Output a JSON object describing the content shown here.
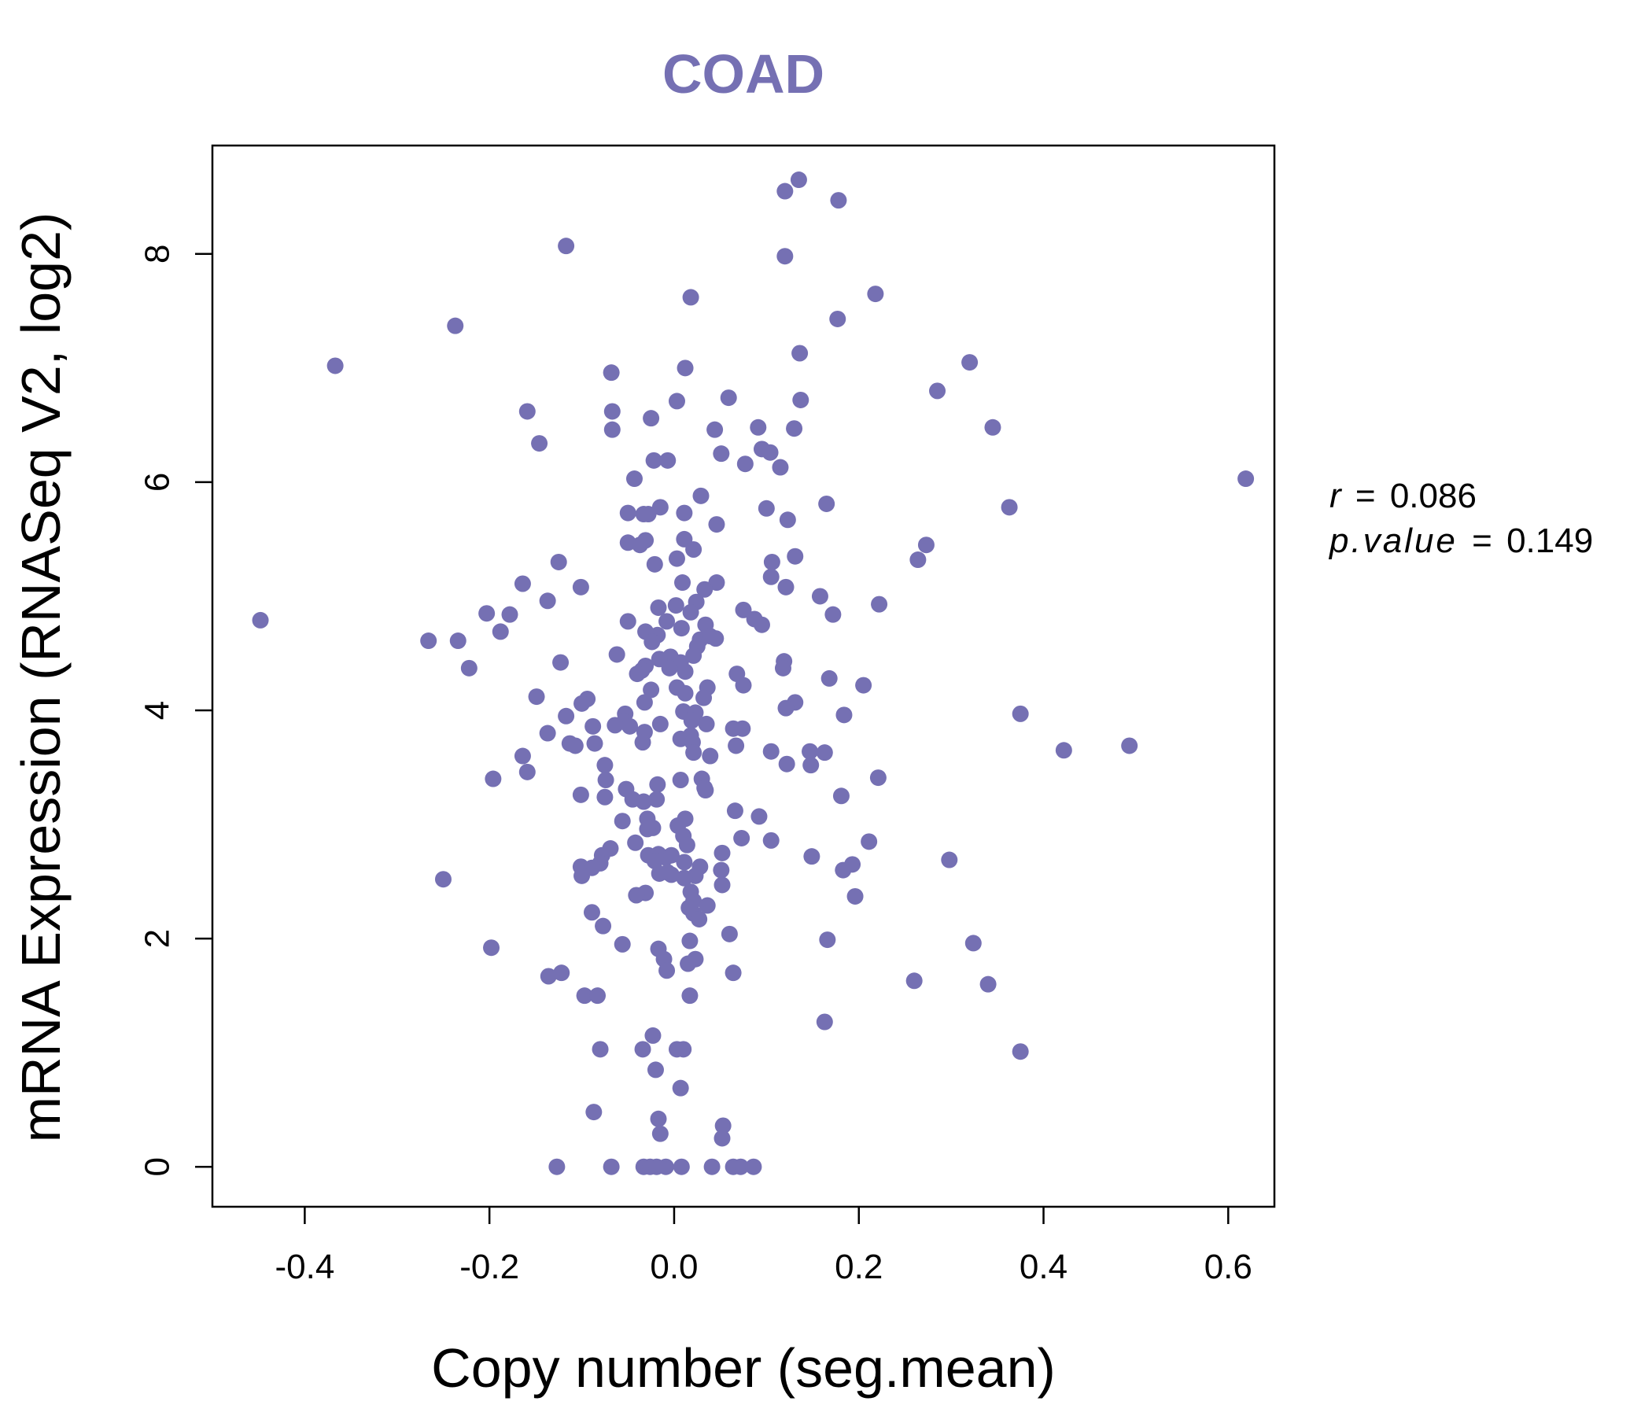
{
  "chart_data": {
    "type": "scatter",
    "title": "COAD",
    "xlabel": "Copy number (seg.mean)",
    "ylabel": "mRNA Expression (RNASeq V2, log2)",
    "xlim": [
      -0.5,
      0.65
    ],
    "ylim": [
      -0.35,
      8.95
    ],
    "x_ticks": [
      -0.4,
      -0.2,
      0.0,
      0.2,
      0.4,
      0.6
    ],
    "x_tick_labels": [
      "-0.4",
      "-0.2",
      "0.0",
      "0.2",
      "0.4",
      "0.6"
    ],
    "y_ticks": [
      0,
      2,
      4,
      6,
      8
    ],
    "y_tick_labels": [
      "0",
      "2",
      "4",
      "6",
      "8"
    ],
    "grid": false,
    "point_color": "#7570b3",
    "stats": {
      "r_label": "r",
      "r_value": "0.086",
      "p_label": "p.value",
      "p_value": "0.149"
    },
    "points": [
      [
        0.135,
        8.65
      ],
      [
        0.12,
        8.55
      ],
      [
        0.178,
        8.47
      ],
      [
        -0.117,
        8.07
      ],
      [
        0.12,
        7.98
      ],
      [
        0.218,
        7.65
      ],
      [
        0.018,
        7.62
      ],
      [
        0.177,
        7.43
      ],
      [
        -0.237,
        7.37
      ],
      [
        0.136,
        7.13
      ],
      [
        -0.367,
        7.02
      ],
      [
        0.32,
        7.05
      ],
      [
        0.012,
        7.0
      ],
      [
        -0.068,
        6.96
      ],
      [
        0.285,
        6.8
      ],
      [
        0.059,
        6.74
      ],
      [
        0.003,
        6.71
      ],
      [
        0.137,
        6.72
      ],
      [
        -0.159,
        6.62
      ],
      [
        -0.067,
        6.62
      ],
      [
        -0.025,
        6.56
      ],
      [
        -0.067,
        6.46
      ],
      [
        0.044,
        6.46
      ],
      [
        0.091,
        6.48
      ],
      [
        0.13,
        6.47
      ],
      [
        0.345,
        6.48
      ],
      [
        -0.146,
        6.34
      ],
      [
        0.095,
        6.29
      ],
      [
        0.104,
        6.26
      ],
      [
        0.051,
        6.25
      ],
      [
        -0.022,
        6.19
      ],
      [
        -0.007,
        6.19
      ],
      [
        0.077,
        6.16
      ],
      [
        0.115,
        6.13
      ],
      [
        0.619,
        6.03
      ],
      [
        -0.043,
        6.03
      ],
      [
        0.029,
        5.88
      ],
      [
        0.165,
        5.81
      ],
      [
        -0.015,
        5.78
      ],
      [
        -0.033,
        5.72
      ],
      [
        0.011,
        5.73
      ],
      [
        -0.028,
        5.72
      ],
      [
        -0.05,
        5.73
      ],
      [
        0.1,
        5.77
      ],
      [
        0.363,
        5.78
      ],
      [
        0.123,
        5.67
      ],
      [
        0.046,
        5.63
      ],
      [
        0.011,
        5.5
      ],
      [
        -0.031,
        5.49
      ],
      [
        -0.05,
        5.47
      ],
      [
        -0.037,
        5.45
      ],
      [
        0.021,
        5.41
      ],
      [
        0.273,
        5.45
      ],
      [
        0.131,
        5.35
      ],
      [
        0.264,
        5.32
      ],
      [
        -0.125,
        5.3
      ],
      [
        -0.021,
        5.28
      ],
      [
        0.003,
        5.33
      ],
      [
        0.106,
        5.3
      ],
      [
        0.105,
        5.17
      ],
      [
        0.009,
        5.12
      ],
      [
        0.046,
        5.12
      ],
      [
        -0.164,
        5.11
      ],
      [
        -0.101,
        5.08
      ],
      [
        0.121,
        5.08
      ],
      [
        0.033,
        5.06
      ],
      [
        0.024,
        4.95
      ],
      [
        -0.137,
        4.96
      ],
      [
        0.158,
        5.0
      ],
      [
        0.222,
        4.93
      ],
      [
        0.002,
        4.92
      ],
      [
        -0.017,
        4.9
      ],
      [
        0.075,
        4.88
      ],
      [
        0.018,
        4.86
      ],
      [
        -0.178,
        4.84
      ],
      [
        -0.203,
        4.85
      ],
      [
        0.172,
        4.84
      ],
      [
        -0.05,
        4.78
      ],
      [
        -0.008,
        4.78
      ],
      [
        0.087,
        4.8
      ],
      [
        0.095,
        4.75
      ],
      [
        0.008,
        4.72
      ],
      [
        0.034,
        4.75
      ],
      [
        -0.031,
        4.69
      ],
      [
        -0.018,
        4.66
      ],
      [
        0.028,
        4.62
      ],
      [
        0.039,
        4.65
      ],
      [
        -0.188,
        4.69
      ],
      [
        -0.448,
        4.79
      ],
      [
        -0.266,
        4.61
      ],
      [
        -0.234,
        4.61
      ],
      [
        -0.024,
        4.6
      ],
      [
        0.045,
        4.63
      ],
      [
        0.025,
        4.56
      ],
      [
        -0.062,
        4.49
      ],
      [
        -0.004,
        4.47
      ],
      [
        0.021,
        4.48
      ],
      [
        -0.016,
        4.45
      ],
      [
        0.119,
        4.43
      ],
      [
        0.007,
        4.42
      ],
      [
        -0.031,
        4.39
      ],
      [
        -0.005,
        4.37
      ],
      [
        -0.123,
        4.42
      ],
      [
        -0.222,
        4.37
      ],
      [
        0.118,
        4.37
      ],
      [
        -0.035,
        4.35
      ],
      [
        0.012,
        4.34
      ],
      [
        0.068,
        4.32
      ],
      [
        -0.04,
        4.32
      ],
      [
        0.168,
        4.28
      ],
      [
        0.075,
        4.22
      ],
      [
        0.205,
        4.22
      ],
      [
        0.003,
        4.2
      ],
      [
        0.036,
        4.2
      ],
      [
        -0.025,
        4.18
      ],
      [
        0.012,
        4.15
      ],
      [
        -0.149,
        4.12
      ],
      [
        0.032,
        4.11
      ],
      [
        -0.032,
        4.07
      ],
      [
        -0.094,
        4.1
      ],
      [
        -0.1,
        4.06
      ],
      [
        0.131,
        4.07
      ],
      [
        0.121,
        4.02
      ],
      [
        0.01,
        3.99
      ],
      [
        0.023,
        3.98
      ],
      [
        -0.053,
        3.97
      ],
      [
        0.375,
        3.97
      ],
      [
        0.184,
        3.96
      ],
      [
        -0.117,
        3.95
      ],
      [
        0.019,
        3.91
      ],
      [
        -0.054,
        3.9
      ],
      [
        -0.064,
        3.87
      ],
      [
        -0.048,
        3.86
      ],
      [
        -0.015,
        3.88
      ],
      [
        0.035,
        3.88
      ],
      [
        0.064,
        3.84
      ],
      [
        -0.088,
        3.86
      ],
      [
        0.074,
        3.84
      ],
      [
        -0.137,
        3.8
      ],
      [
        -0.032,
        3.81
      ],
      [
        0.018,
        3.78
      ],
      [
        0.007,
        3.75
      ],
      [
        0.02,
        3.72
      ],
      [
        -0.034,
        3.72
      ],
      [
        -0.086,
        3.71
      ],
      [
        -0.113,
        3.71
      ],
      [
        0.067,
        3.69
      ],
      [
        -0.107,
        3.69
      ],
      [
        0.493,
        3.69
      ],
      [
        0.422,
        3.65
      ],
      [
        0.105,
        3.64
      ],
      [
        0.147,
        3.64
      ],
      [
        0.163,
        3.63
      ],
      [
        0.039,
        3.6
      ],
      [
        -0.164,
        3.6
      ],
      [
        0.021,
        3.63
      ],
      [
        0.122,
        3.53
      ],
      [
        0.148,
        3.52
      ],
      [
        -0.075,
        3.52
      ],
      [
        -0.159,
        3.46
      ],
      [
        0.221,
        3.41
      ],
      [
        -0.196,
        3.4
      ],
      [
        0.03,
        3.4
      ],
      [
        0.007,
        3.39
      ],
      [
        -0.074,
        3.39
      ],
      [
        -0.018,
        3.35
      ],
      [
        0.033,
        3.32
      ],
      [
        0.034,
        3.3
      ],
      [
        -0.052,
        3.31
      ],
      [
        -0.101,
        3.26
      ],
      [
        -0.075,
        3.24
      ],
      [
        -0.019,
        3.22
      ],
      [
        -0.045,
        3.22
      ],
      [
        -0.033,
        3.2
      ],
      [
        0.181,
        3.25
      ],
      [
        0.066,
        3.12
      ],
      [
        0.092,
        3.07
      ],
      [
        -0.029,
        3.05
      ],
      [
        0.012,
        3.05
      ],
      [
        -0.056,
        3.03
      ],
      [
        0.004,
        2.99
      ],
      [
        -0.023,
        2.97
      ],
      [
        -0.029,
        2.96
      ],
      [
        0.01,
        2.9
      ],
      [
        0.073,
        2.88
      ],
      [
        0.105,
        2.86
      ],
      [
        0.211,
        2.85
      ],
      [
        -0.042,
        2.84
      ],
      [
        0.014,
        2.82
      ],
      [
        -0.069,
        2.79
      ],
      [
        -0.078,
        2.73
      ],
      [
        0.052,
        2.75
      ],
      [
        -0.017,
        2.74
      ],
      [
        -0.028,
        2.73
      ],
      [
        0.298,
        2.69
      ],
      [
        0.149,
        2.72
      ],
      [
        0.193,
        2.65
      ],
      [
        0.183,
        2.6
      ],
      [
        -0.009,
        2.71
      ],
      [
        -0.003,
        2.73
      ],
      [
        -0.021,
        2.68
      ],
      [
        0.011,
        2.67
      ],
      [
        -0.101,
        2.63
      ],
      [
        -0.08,
        2.66
      ],
      [
        0.028,
        2.63
      ],
      [
        -0.089,
        2.62
      ],
      [
        0.051,
        2.6
      ],
      [
        -0.007,
        2.58
      ],
      [
        -0.003,
        2.56
      ],
      [
        -0.016,
        2.57
      ],
      [
        -0.1,
        2.55
      ],
      [
        0.023,
        2.55
      ],
      [
        0.011,
        2.53
      ],
      [
        -0.25,
        2.52
      ],
      [
        0.052,
        2.47
      ],
      [
        0.018,
        2.41
      ],
      [
        -0.031,
        2.4
      ],
      [
        -0.041,
        2.38
      ],
      [
        0.196,
        2.37
      ],
      [
        0.021,
        2.33
      ],
      [
        0.036,
        2.29
      ],
      [
        0.016,
        2.27
      ],
      [
        -0.089,
        2.23
      ],
      [
        0.021,
        2.22
      ],
      [
        0.027,
        2.17
      ],
      [
        -0.077,
        2.11
      ],
      [
        0.06,
        2.04
      ],
      [
        0.166,
        1.99
      ],
      [
        0.017,
        1.98
      ],
      [
        -0.056,
        1.95
      ],
      [
        0.324,
        1.96
      ],
      [
        -0.198,
        1.92
      ],
      [
        -0.017,
        1.91
      ],
      [
        -0.011,
        1.82
      ],
      [
        0.023,
        1.82
      ],
      [
        0.015,
        1.78
      ],
      [
        -0.008,
        1.72
      ],
      [
        0.064,
        1.7
      ],
      [
        -0.122,
        1.7
      ],
      [
        -0.136,
        1.67
      ],
      [
        0.26,
        1.63
      ],
      [
        0.34,
        1.6
      ],
      [
        -0.097,
        1.5
      ],
      [
        -0.083,
        1.5
      ],
      [
        0.017,
        1.5
      ],
      [
        0.163,
        1.27
      ],
      [
        -0.023,
        1.15
      ],
      [
        -0.08,
        1.03
      ],
      [
        -0.034,
        1.03
      ],
      [
        0.003,
        1.03
      ],
      [
        0.01,
        1.03
      ],
      [
        0.375,
        1.01
      ],
      [
        -0.02,
        0.85
      ],
      [
        0.007,
        0.69
      ],
      [
        -0.087,
        0.48
      ],
      [
        -0.017,
        0.42
      ],
      [
        0.053,
        0.36
      ],
      [
        -0.015,
        0.29
      ],
      [
        0.052,
        0.25
      ],
      [
        -0.127,
        0.0
      ],
      [
        -0.068,
        0.0
      ],
      [
        -0.033,
        0.0
      ],
      [
        -0.026,
        0.0
      ],
      [
        -0.019,
        0.0
      ],
      [
        -0.009,
        0.0
      ],
      [
        0.008,
        0.0
      ],
      [
        0.041,
        0.0
      ],
      [
        0.064,
        0.0
      ],
      [
        0.072,
        0.0
      ],
      [
        0.086,
        0.0
      ]
    ]
  }
}
